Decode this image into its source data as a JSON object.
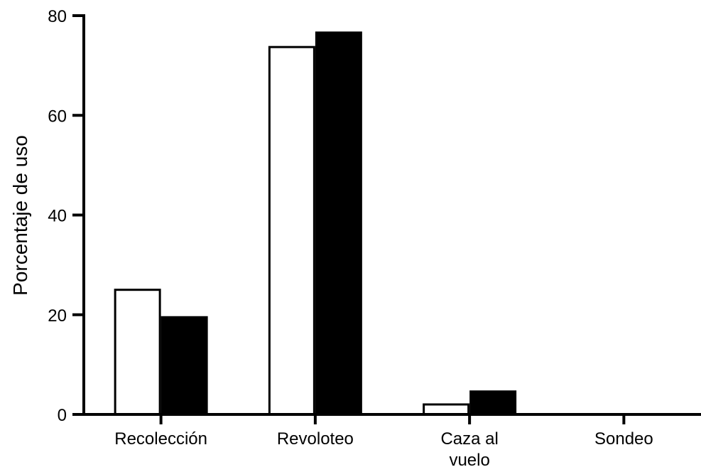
{
  "chart_data": {
    "type": "bar",
    "title": "",
    "xlabel": "",
    "ylabel": "Porcentaje de uso",
    "ylim": [
      0,
      80
    ],
    "yticks": [
      "0",
      "20",
      "40",
      "60",
      "80"
    ],
    "categories": [
      [
        "Recolección"
      ],
      [
        "Revoloteo"
      ],
      [
        "Caza al",
        "vuelo"
      ],
      [
        "Sondeo"
      ]
    ],
    "series": [
      {
        "fill": "#ffffff",
        "stroke": "#000000",
        "values": [
          25,
          73.7,
          2,
          0
        ]
      },
      {
        "fill": "#000000",
        "stroke": "#000000",
        "values": [
          19.5,
          76.6,
          4.6,
          0
        ]
      }
    ],
    "grid": false,
    "legend": "none"
  }
}
